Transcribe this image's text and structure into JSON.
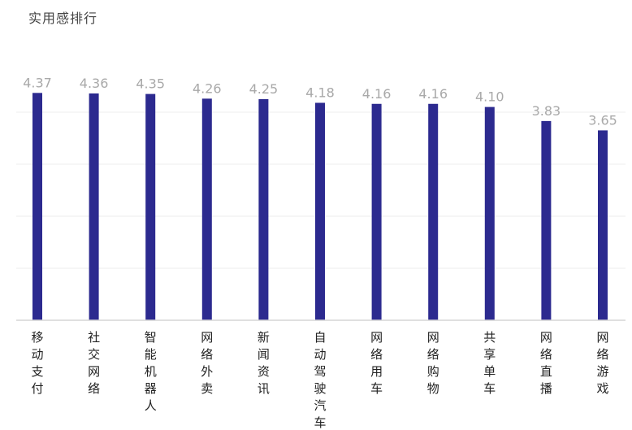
{
  "chart_data": {
    "type": "bar",
    "title": "实用感排行",
    "categories": [
      "移动支付",
      "社交网络",
      "智能机器人",
      "网络外卖",
      "新闻资讯",
      "自动驾驶汽车",
      "网络用车",
      "网络购物",
      "共享单车",
      "网络直播",
      "网络游戏"
    ],
    "values": [
      4.37,
      4.36,
      4.35,
      4.26,
      4.25,
      4.18,
      4.16,
      4.16,
      4.1,
      3.83,
      3.65
    ],
    "value_labels": [
      "4.37",
      "4.36",
      "4.35",
      "4.26",
      "4.25",
      "4.18",
      "4.16",
      "4.16",
      "4.10",
      "3.83",
      "3.65"
    ],
    "xlabel": "",
    "ylabel": "",
    "ylim": [
      0,
      4.5
    ],
    "grid": true,
    "bar_color": "#2c2a8f",
    "label_color": "#a9a9a9"
  }
}
